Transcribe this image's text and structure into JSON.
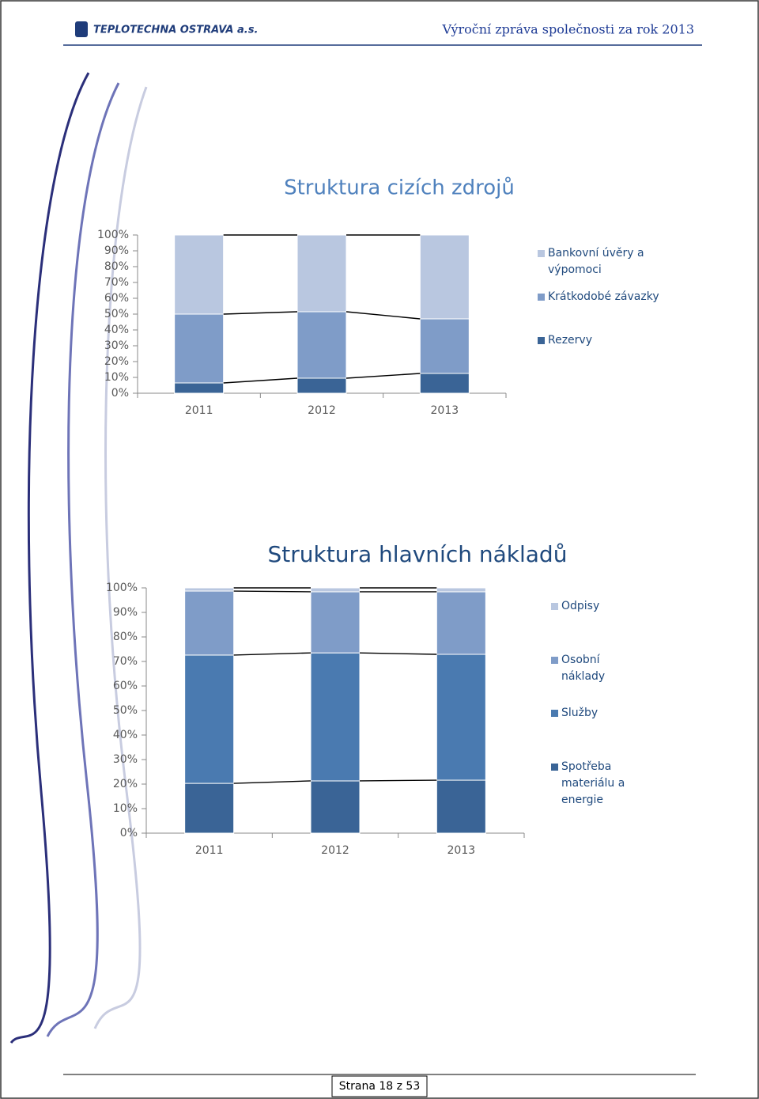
{
  "header": {
    "logo": "TEPLOTECHNA OSTRAVA a.s.",
    "title": "Výroční zpráva společnosti za rok 2013"
  },
  "chart_data": [
    {
      "type": "bar",
      "stacked": true,
      "title": "Struktura cizích zdrojů",
      "categories": [
        "2011",
        "2012",
        "2013"
      ],
      "series": [
        {
          "name": "Bankovní úvěry a výpomoci",
          "color": "#b9c7e0",
          "values": [
            50,
            48.5,
            53
          ]
        },
        {
          "name": "Krátkodobé závazky",
          "color": "#7f9cc8",
          "values": [
            43.5,
            42,
            34.5
          ]
        },
        {
          "name": "Rezervy",
          "color": "#3a6496",
          "values": [
            6.5,
            9.5,
            12.5
          ]
        }
      ],
      "ylim": [
        0,
        100
      ],
      "yticks": [
        {
          "value": 0,
          "label": "0%"
        },
        {
          "value": 10,
          "label": "10%"
        },
        {
          "value": 20,
          "label": "20%"
        },
        {
          "value": 30,
          "label": "30%"
        },
        {
          "value": 40,
          "label": "40%"
        },
        {
          "value": 50,
          "label": "50%"
        },
        {
          "value": 60,
          "label": "60%"
        },
        {
          "value": 70,
          "label": "70%"
        },
        {
          "value": 80,
          "label": "80%"
        },
        {
          "value": 90,
          "label": "90%"
        },
        {
          "value": 100,
          "label": "100%"
        }
      ],
      "legend": "right"
    },
    {
      "type": "bar",
      "stacked": true,
      "title": "Struktura hlavních nákladů",
      "categories": [
        "2011",
        "2012",
        "2013"
      ],
      "series": [
        {
          "name": "Odpisy",
          "color": "#b9c7e0",
          "values": [
            1.3,
            1.6,
            1.6
          ]
        },
        {
          "name": "Osobní náklady",
          "color": "#7f9cc8",
          "values": [
            26.1,
            24.9,
            25.5
          ]
        },
        {
          "name": "Služby",
          "color": "#4a7ab0",
          "values": [
            52.3,
            52.2,
            51.3
          ]
        },
        {
          "name": "Spotřeba materiálu a energie",
          "color": "#3a6496",
          "values": [
            20.3,
            21.3,
            21.6
          ]
        }
      ],
      "ylim": [
        0,
        100
      ],
      "yticks": [
        {
          "value": 0,
          "label": "0%"
        },
        {
          "value": 10,
          "label": "10%"
        },
        {
          "value": 20,
          "label": "20%"
        },
        {
          "value": 30,
          "label": "30%"
        },
        {
          "value": 40,
          "label": "40%"
        },
        {
          "value": 50,
          "label": "50%"
        },
        {
          "value": 60,
          "label": "60%"
        },
        {
          "value": 70,
          "label": "70%"
        },
        {
          "value": 80,
          "label": "80%"
        },
        {
          "value": 90,
          "label": "90%"
        },
        {
          "value": 100,
          "label": "100%"
        }
      ],
      "legend": "right"
    }
  ],
  "footer": {
    "page": "Strana 18 z 53"
  }
}
